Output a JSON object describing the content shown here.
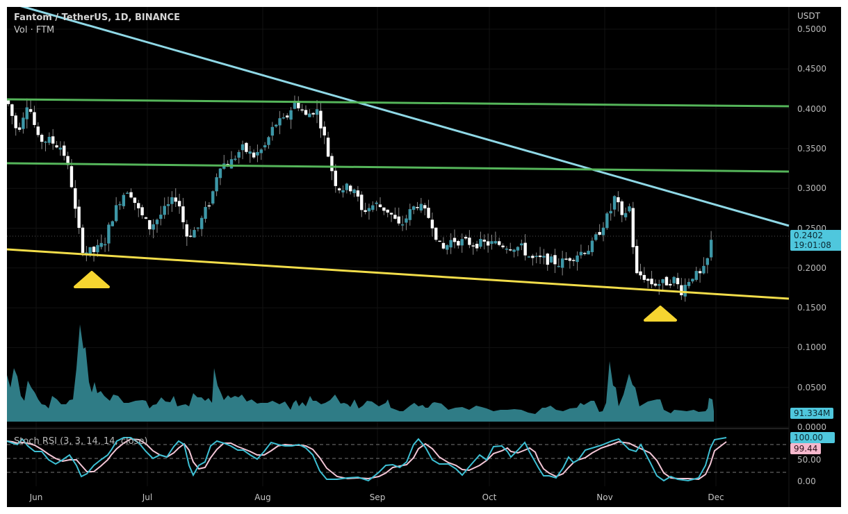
{
  "header": {
    "symbol_title": "Fantom / TetherUS, 1D, BINANCE",
    "volume_legend": "Vol · FTM",
    "rsi_legend": "Stoch RSI (3, 3, 14, 14, close)"
  },
  "price_axis": {
    "unit": "USDT",
    "ticks": [
      "0.5000",
      "0.4500",
      "0.4000",
      "0.3500",
      "0.3000",
      "0.2500",
      "0.2000",
      "0.1500",
      "0.1000",
      "0.0500",
      "0.0000"
    ]
  },
  "rsi_axis": {
    "ticks": [
      "50.00",
      "0.00"
    ]
  },
  "time_axis": {
    "months": [
      "Jun",
      "Jul",
      "Aug",
      "Sep",
      "Oct",
      "Nov",
      "Dec"
    ]
  },
  "badges": {
    "last_price": "0.2402",
    "countdown": "19:01:08",
    "volume": "91.334M",
    "stoch_k": "100.00",
    "stoch_d": "99.44"
  },
  "colors": {
    "background": "#000000",
    "candle_up": "#3d97a7",
    "candle_down": "#ffffff",
    "volume_fill": "#2f7c86",
    "downtrend_line": "#8fd8e6",
    "resistance_lines": "#55b55a",
    "support_line": "#f2dd4a",
    "markers": "#f6d530",
    "stoch_k": "#3dbfd3",
    "stoch_d": "#f3c6d6"
  },
  "chart_data": [
    {
      "type": "candlestick",
      "title": "Fantom / TetherUS, 1D, BINANCE",
      "ylabel": "USDT",
      "ylim": [
        0.0,
        0.5
      ],
      "x_ticks": [
        "Jun",
        "Jul",
        "Aug",
        "Sep",
        "Oct",
        "Nov",
        "Dec"
      ],
      "approx_closes_by_period": [
        {
          "period": "late May",
          "price": 0.4
        },
        {
          "period": "early Jun",
          "price": 0.36
        },
        {
          "period": "mid Jun",
          "price": 0.22
        },
        {
          "period": "late Jun",
          "price": 0.29
        },
        {
          "period": "early Jul",
          "price": 0.26
        },
        {
          "period": "mid Jul",
          "price": 0.34
        },
        {
          "period": "early Aug",
          "price": 0.4
        },
        {
          "period": "mid Aug",
          "price": 0.41
        },
        {
          "period": "late Aug",
          "price": 0.3
        },
        {
          "period": "early Sep",
          "price": 0.27
        },
        {
          "period": "mid Sep",
          "price": 0.25
        },
        {
          "period": "late Sep",
          "price": 0.23
        },
        {
          "period": "mid Oct",
          "price": 0.21
        },
        {
          "period": "late Oct",
          "price": 0.23
        },
        {
          "period": "early Nov",
          "price": 0.29
        },
        {
          "period": "mid Nov",
          "price": 0.18
        },
        {
          "period": "late Nov",
          "price": 0.18
        },
        {
          "period": "end Nov",
          "price": 0.2402
        }
      ],
      "last_price": 0.2402,
      "trendlines": [
        {
          "name": "descending resistance",
          "color": "cyan",
          "from": {
            "x": "late May",
            "y": 0.51
          },
          "to": {
            "x": "mid Dec",
            "y": 0.253
          }
        },
        {
          "name": "horizontal resistance high",
          "color": "green",
          "from": {
            "x": "late May",
            "y": 0.411
          },
          "to": {
            "x": "mid Dec",
            "y": 0.403
          }
        },
        {
          "name": "horizontal resistance low",
          "color": "green",
          "from": {
            "x": "late May",
            "y": 0.331
          },
          "to": {
            "x": "mid Dec",
            "y": 0.32
          }
        },
        {
          "name": "rising support (falling wedge base)",
          "color": "yellow",
          "from": {
            "x": "late May",
            "y": 0.222
          },
          "to": {
            "x": "mid Dec",
            "y": 0.16
          }
        }
      ],
      "annotations": [
        {
          "type": "triangle-up marker",
          "color": "yellow",
          "at": "mid Jun",
          "price": 0.18
        },
        {
          "type": "triangle-up marker",
          "color": "yellow",
          "at": "late Nov",
          "price": 0.145
        }
      ]
    },
    {
      "type": "area",
      "title": "Vol · FTM",
      "last_value_label": "91.334M",
      "relative_peaks": [
        {
          "period": "mid Jun",
          "level": "highest"
        },
        {
          "period": "mid Jul",
          "level": "high"
        },
        {
          "period": "early Nov",
          "level": "high"
        },
        {
          "period": "mid Nov",
          "level": "medium"
        },
        {
          "period": "end Nov",
          "level": "medium"
        }
      ]
    },
    {
      "type": "line",
      "title": "Stoch RSI (3, 3, 14, 14, close)",
      "ylim": [
        0,
        100
      ],
      "levels": [
        80,
        50,
        20
      ],
      "series": [
        {
          "name": "K",
          "last": 100.0
        },
        {
          "name": "D",
          "last": 99.44
        }
      ]
    }
  ]
}
